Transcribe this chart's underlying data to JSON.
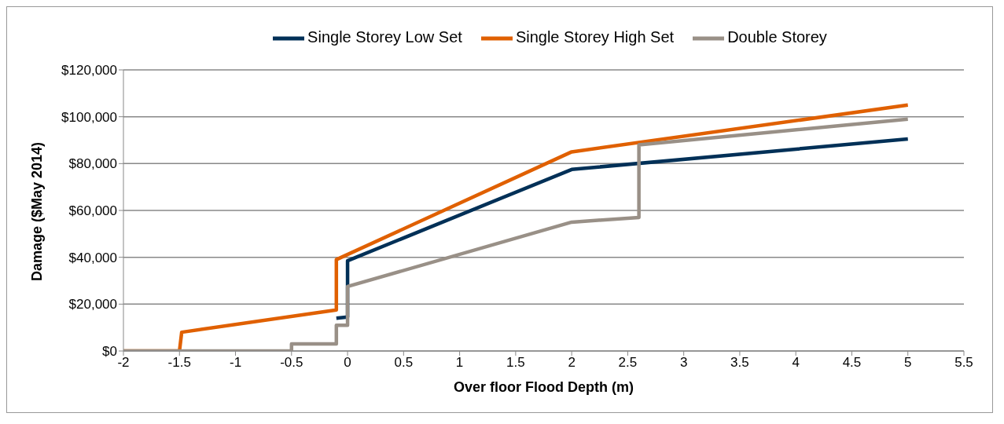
{
  "chart_data": {
    "type": "line",
    "xlabel": "Over floor Flood Depth (m)",
    "ylabel": "Damage ($May 2014)",
    "xlim": [
      -2,
      5.5
    ],
    "xticks": [
      {
        "value": -2,
        "label": "-2"
      },
      {
        "value": -1.5,
        "label": "-1.5"
      },
      {
        "value": -1,
        "label": "-1"
      },
      {
        "value": -0.5,
        "label": "-0.5"
      },
      {
        "value": 0,
        "label": "0"
      },
      {
        "value": 0.5,
        "label": "0.5"
      },
      {
        "value": 1,
        "label": "1"
      },
      {
        "value": 1.5,
        "label": "1.5"
      },
      {
        "value": 2,
        "label": "2"
      },
      {
        "value": 2.5,
        "label": "2.5"
      },
      {
        "value": 3,
        "label": "3"
      },
      {
        "value": 3.5,
        "label": "3.5"
      },
      {
        "value": 4,
        "label": "4"
      },
      {
        "value": 4.5,
        "label": "4.5"
      },
      {
        "value": 5,
        "label": "5"
      },
      {
        "value": 5.5,
        "label": "5.5"
      }
    ],
    "ylim": [
      0,
      120000
    ],
    "yticks": [
      {
        "value": 0,
        "label": "$0"
      },
      {
        "value": 20000,
        "label": "$20,000"
      },
      {
        "value": 40000,
        "label": "$40,000"
      },
      {
        "value": 60000,
        "label": "$60,000"
      },
      {
        "value": 80000,
        "label": "$80,000"
      },
      {
        "value": 100000,
        "label": "$100,000"
      },
      {
        "value": 120000,
        "label": "$120,000"
      }
    ],
    "grid": "y",
    "legend": "top",
    "marker": "none",
    "line_style": "solid",
    "series": [
      {
        "name": "Single Storey Low Set",
        "color": "#003057",
        "x": [
          -0.1,
          0,
          0,
          2,
          5
        ],
        "values": [
          14000,
          14500,
          38500,
          77500,
          90500
        ]
      },
      {
        "name": "Single Storey High Set",
        "color": "#e06000",
        "x": [
          -2,
          -1.5,
          -1.48,
          -0.1,
          -0.1,
          2,
          5
        ],
        "values": [
          0,
          0,
          8000,
          17500,
          39000,
          85000,
          105000
        ]
      },
      {
        "name": "Double Storey",
        "color": "#999087",
        "x": [
          -2,
          -0.5,
          -0.5,
          -0.1,
          -0.1,
          0,
          0,
          2,
          2.6,
          2.6,
          5
        ],
        "values": [
          0,
          0,
          3000,
          3000,
          11000,
          11000,
          27500,
          55000,
          57000,
          88000,
          99000
        ]
      }
    ]
  }
}
